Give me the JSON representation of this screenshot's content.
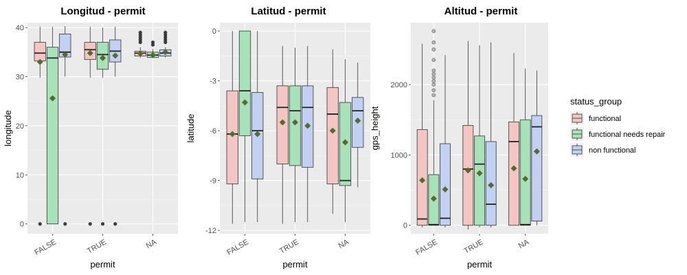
{
  "colors": {
    "functional": "#F4C6C3",
    "functional needs repair": "#A8E2B8",
    "non functional": "#C2D0F2",
    "mean_marker": "#556B2F",
    "panel_bg": "#EBEBEB",
    "outlier": "#333333"
  },
  "legend": {
    "title": "status_group",
    "items": [
      "functional",
      "functional needs repair",
      "non functional"
    ]
  },
  "chart_data": [
    {
      "type": "boxplot",
      "title": "Longitud - permit",
      "xlabel": "permit",
      "ylabel": "longitude",
      "categories": [
        "FALSE",
        "TRUE",
        "NA"
      ],
      "ylim": [
        -2,
        41
      ],
      "yticks": [
        0,
        10,
        20,
        30,
        40
      ],
      "ytick_labels": [
        "0",
        "10",
        "20",
        "30",
        "40"
      ],
      "series": [
        {
          "name": "functional",
          "boxes": [
            {
              "lo": 29.8,
              "q1": 33.2,
              "med": 34.8,
              "q3": 37.0,
              "hi": 40.2,
              "mean": 33.0,
              "outliers": [
                0
              ]
            },
            {
              "lo": 29.8,
              "q1": 33.5,
              "med": 35.5,
              "q3": 37.0,
              "hi": 40.2,
              "mean": 34.8,
              "outliers": [
                0
              ]
            },
            {
              "lo": 33.8,
              "q1": 34.2,
              "med": 34.8,
              "q3": 35.2,
              "hi": 36.0,
              "mean": 34.7,
              "outliers": [
                37.0,
                37.5,
                38.0,
                38.5,
                39.0
              ]
            }
          ]
        },
        {
          "name": "functional needs repair",
          "boxes": [
            {
              "lo": 0,
              "q1": 0,
              "med": 33.8,
              "q3": 36.0,
              "hi": 40.2,
              "mean": 25.6,
              "outliers": []
            },
            {
              "lo": 29.8,
              "q1": 31.5,
              "med": 34.5,
              "q3": 37.0,
              "hi": 40.0,
              "mean": 33.8,
              "outliers": [
                0
              ]
            },
            {
              "lo": 33.8,
              "q1": 33.9,
              "med": 34.4,
              "q3": 35.0,
              "hi": 35.6,
              "mean": 34.4,
              "outliers": [
                36.5,
                37.0
              ]
            }
          ]
        },
        {
          "name": "non functional",
          "boxes": [
            {
              "lo": 30.0,
              "q1": 34.0,
              "med": 35.0,
              "q3": 38.7,
              "hi": 40.3,
              "mean": 34.5,
              "outliers": [
                0
              ]
            },
            {
              "lo": 30.0,
              "q1": 33.0,
              "med": 35.2,
              "q3": 37.5,
              "hi": 40.2,
              "mean": 34.3,
              "outliers": [
                0
              ]
            },
            {
              "lo": 33.9,
              "q1": 34.2,
              "med": 34.8,
              "q3": 35.5,
              "hi": 36.0,
              "mean": 35.0,
              "outliers": [
                37.0,
                37.5,
                38.0,
                38.5,
                39.0
              ]
            }
          ]
        }
      ]
    },
    {
      "type": "boxplot",
      "title": "Latitud - permit",
      "xlabel": "permit",
      "ylabel": "latitude",
      "categories": [
        "FALSE",
        "TRUE",
        "NA"
      ],
      "ylim": [
        -12.2,
        0.5
      ],
      "yticks": [
        0,
        -3,
        -6,
        -9,
        -12
      ],
      "ytick_labels": [
        "0",
        "-3",
        "-6",
        "-9",
        "-12"
      ],
      "series": [
        {
          "name": "functional",
          "boxes": [
            {
              "lo": -11.6,
              "q1": -9.2,
              "med": -6.2,
              "q3": -3.6,
              "hi": 0,
              "mean": -6.2,
              "outliers": []
            },
            {
              "lo": -11.6,
              "q1": -8.0,
              "med": -4.6,
              "q3": -3.3,
              "hi": -0.9,
              "mean": -5.5,
              "outliers": []
            },
            {
              "lo": -11.0,
              "q1": -9.2,
              "med": -5.0,
              "q3": -3.4,
              "hi": -1.1,
              "mean": -6.0,
              "outliers": []
            }
          ]
        },
        {
          "name": "functional needs repair",
          "boxes": [
            {
              "lo": -11.5,
              "q1": -6.3,
              "med": -3.6,
              "q3": 0,
              "hi": 0,
              "mean": -4.3,
              "outliers": []
            },
            {
              "lo": -11.5,
              "q1": -8.1,
              "med": -4.8,
              "q3": -3.3,
              "hi": -1.0,
              "mean": -5.5,
              "outliers": []
            },
            {
              "lo": -11.5,
              "q1": -9.3,
              "med": -9.0,
              "q3": -4.3,
              "hi": -1.7,
              "mean": -6.7,
              "outliers": []
            }
          ]
        },
        {
          "name": "non functional",
          "boxes": [
            {
              "lo": -11.5,
              "q1": -8.9,
              "med": -6.0,
              "q3": -3.7,
              "hi": 0,
              "mean": -6.2,
              "outliers": []
            },
            {
              "lo": -11.5,
              "q1": -8.2,
              "med": -4.6,
              "q3": -3.3,
              "hi": -0.9,
              "mean": -5.7,
              "outliers": []
            },
            {
              "lo": -9.4,
              "q1": -7.0,
              "med": -4.8,
              "q3": -4.0,
              "hi": -1.9,
              "mean": -5.4,
              "outliers": []
            }
          ]
        }
      ]
    },
    {
      "type": "boxplot",
      "title": "Altitud - permit",
      "xlabel": "permit",
      "ylabel": "gps_height",
      "categories": [
        "FALSE",
        "TRUE",
        "NA"
      ],
      "ylim": [
        -120,
        2880
      ],
      "yticks": [
        0,
        1000,
        2000
      ],
      "ytick_labels": [
        "0",
        "1000",
        "2000"
      ],
      "series": [
        {
          "name": "functional",
          "boxes": [
            {
              "lo": -30,
              "q1": 0,
              "med": 90,
              "q3": 1360,
              "hi": 2580,
              "mean": 640,
              "outliers": []
            },
            {
              "lo": -60,
              "q1": 0,
              "med": 800,
              "q3": 1420,
              "hi": 2620,
              "mean": 780,
              "outliers": []
            },
            {
              "lo": 0,
              "q1": 0,
              "med": 1190,
              "q3": 1470,
              "hi": 2450,
              "mean": 810,
              "outliers": []
            }
          ]
        },
        {
          "name": "functional needs repair",
          "boxes": [
            {
              "lo": 0,
              "q1": 0,
              "med": 10,
              "q3": 720,
              "hi": 1780,
              "mean": 380,
              "outliers": [
                1850,
                1920,
                2000,
                2050,
                2100,
                2150,
                2200,
                2350,
                2500,
                2600,
                2760
              ]
            },
            {
              "lo": -30,
              "q1": 0,
              "med": 870,
              "q3": 1270,
              "hi": 2560,
              "mean": 740,
              "outliers": []
            },
            {
              "lo": 0,
              "q1": 0,
              "med": 10,
              "q3": 1500,
              "hi": 2230,
              "mean": 660,
              "outliers": []
            }
          ]
        },
        {
          "name": "non functional",
          "boxes": [
            {
              "lo": -30,
              "q1": 0,
              "med": 100,
              "q3": 1160,
              "hi": 2420,
              "mean": 510,
              "outliers": []
            },
            {
              "lo": -30,
              "q1": 0,
              "med": 300,
              "q3": 1190,
              "hi": 2600,
              "mean": 570,
              "outliers": []
            },
            {
              "lo": 0,
              "q1": 60,
              "med": 1400,
              "q3": 1560,
              "hi": 2200,
              "mean": 1050,
              "outliers": []
            }
          ]
        }
      ]
    }
  ]
}
